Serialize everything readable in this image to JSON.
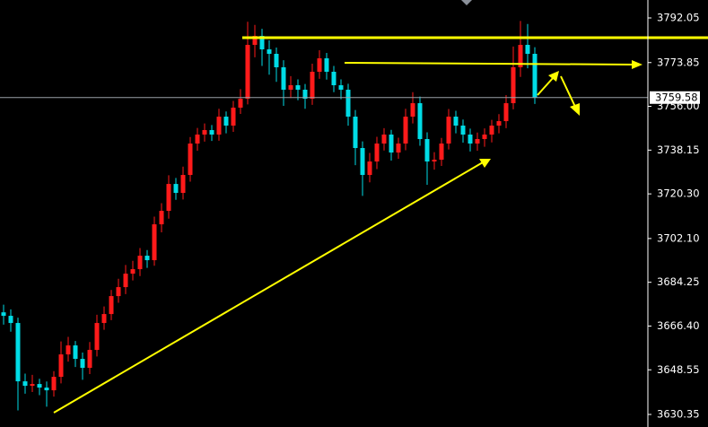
{
  "chart_data": {
    "type": "candlestick",
    "ylim": [
      3625.23,
      3799.37
    ],
    "yticks": [
      3792.05,
      3773.85,
      {
        "value": 3756,
        "label": "3756.00"
      },
      3738.15,
      {
        "value": 3720.3,
        "label": "3720.30"
      },
      {
        "value": 3702.1,
        "label": "3702.10"
      },
      3684.25,
      {
        "value": 3666.4,
        "label": "3666.40"
      },
      3648.55,
      3630.35
    ],
    "last_price": 3759.58,
    "up_color": "#ff1a1a",
    "down_color": "#00dce6",
    "open": [
      3672.0,
      3670.57,
      3667.65,
      3643.86,
      3642.03,
      3642.76,
      3641.3,
      3640.2,
      3645.69,
      3654.84,
      3658.5,
      3653.01,
      3649.35,
      3656.67,
      3667.65,
      3671.3,
      3678.62,
      3682.28,
      3687.77,
      3689.6,
      3695.09,
      3693.26,
      3707.89,
      3713.38,
      3724.35,
      3720.7,
      3728.02,
      3740.83,
      3744.49,
      3746.32,
      3744.49,
      3751.8,
      3748.15,
      3755.46,
      3759.12,
      3781.07,
      3784.73,
      3779.24,
      3777.42,
      3771.93,
      3762.78,
      3764.61,
      3762.78,
      3759.12,
      3770.1,
      3775.59,
      3770.1,
      3764.61,
      3762.78,
      3751.8,
      3739.0,
      3728.02,
      3733.51,
      3740.83,
      3744.49,
      3737.17,
      3740.83,
      3751.8,
      3757.29,
      3742.66,
      3733.51,
      3734.24,
      3740.83,
      3751.8,
      3748.15,
      3744.49,
      3740.83,
      3742.66,
      3744.49,
      3748.15,
      3749.97,
      3757.29,
      3771.93,
      3781.07,
      3777.42
    ],
    "high": [
      3675.1,
      3673.2,
      3669.8,
      3647.0,
      3646.5,
      3644.9,
      3643.8,
      3648.0,
      3660.1,
      3662.0,
      3660.3,
      3655.6,
      3659.9,
      3671.0,
      3674.4,
      3681.1,
      3685.7,
      3691.3,
      3693.0,
      3698.2,
      3697.4,
      3711.0,
      3716.5,
      3727.9,
      3726.8,
      3731.4,
      3743.5,
      3747.2,
      3749.0,
      3748.4,
      3755.0,
      3753.9,
      3758.2,
      3763.0,
      3790.5,
      3789.2,
      3787.6,
      3782.9,
      3780.0,
      3774.8,
      3768.3,
      3767.0,
      3765.1,
      3773.4,
      3778.9,
      3777.8,
      3772.5,
      3767.0,
      3765.2,
      3754.5,
      3741.7,
      3737.0,
      3743.6,
      3747.1,
      3746.4,
      3743.2,
      3755.0,
      3761.8,
      3760.0,
      3745.4,
      3737.3,
      3743.1,
      3754.9,
      3754.2,
      3750.6,
      3746.9,
      3745.3,
      3747.0,
      3750.5,
      3752.8,
      3760.6,
      3780.4,
      3790.8,
      3789.6,
      3780.1
    ],
    "low": [
      3667.0,
      3664.1,
      3632.0,
      3638.8,
      3639.5,
      3638.2,
      3633.5,
      3637.6,
      3643.0,
      3651.9,
      3649.7,
      3644.5,
      3646.8,
      3654.0,
      3664.9,
      3668.8,
      3675.9,
      3679.4,
      3685.0,
      3686.8,
      3690.1,
      3691.0,
      3704.6,
      3710.2,
      3717.9,
      3718.0,
      3725.3,
      3737.9,
      3741.6,
      3741.9,
      3742.0,
      3745.0,
      3745.6,
      3752.9,
      3756.8,
      3776.0,
      3772.5,
      3768.9,
      3766.0,
      3756.2,
      3759.4,
      3758.5,
      3755.0,
      3756.6,
      3767.2,
      3766.9,
      3761.8,
      3758.9,
      3748.1,
      3732.0,
      3719.5,
      3725.0,
      3730.4,
      3738.0,
      3733.9,
      3734.6,
      3738.1,
      3749.0,
      3739.9,
      3724.0,
      3730.2,
      3731.7,
      3738.4,
      3745.0,
      3741.2,
      3737.6,
      3737.9,
      3739.5,
      3741.3,
      3745.0,
      3747.1,
      3754.8,
      3768.0,
      3771.5,
      3757.0
    ],
    "close": [
      3670.57,
      3667.65,
      3643.86,
      3642.03,
      3642.76,
      3641.3,
      3640.2,
      3645.69,
      3654.84,
      3658.5,
      3653.01,
      3649.35,
      3656.67,
      3667.65,
      3671.3,
      3678.62,
      3682.28,
      3687.77,
      3689.6,
      3695.09,
      3693.26,
      3707.89,
      3713.38,
      3724.35,
      3720.7,
      3728.02,
      3740.83,
      3744.49,
      3746.32,
      3744.49,
      3751.8,
      3748.15,
      3755.46,
      3759.12,
      3781.07,
      3784.73,
      3779.24,
      3777.42,
      3771.93,
      3762.78,
      3764.61,
      3762.78,
      3759.12,
      3770.1,
      3775.59,
      3770.1,
      3764.61,
      3762.78,
      3751.8,
      3739.0,
      3728.02,
      3733.51,
      3740.83,
      3744.49,
      3737.17,
      3740.83,
      3751.8,
      3757.29,
      3742.66,
      3733.51,
      3734.24,
      3740.83,
      3751.8,
      3748.15,
      3744.49,
      3740.83,
      3742.66,
      3744.49,
      3748.15,
      3749.97,
      3757.29,
      3771.93,
      3781.07,
      3777.42,
      3759.58
    ]
  }
}
